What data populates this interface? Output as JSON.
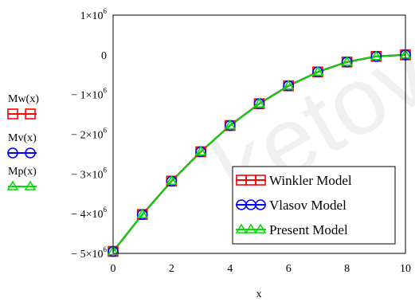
{
  "chart_data": {
    "type": "line",
    "xlabel": "x",
    "ylabel_series": [
      "Mw(x)",
      "Mv(x)",
      "Mp(x)"
    ],
    "xlim": [
      0,
      10
    ],
    "ylim": [
      -5000000,
      1000000
    ],
    "x_ticks": [
      {
        "value": 0,
        "label": "0"
      },
      {
        "value": 2,
        "label": "2"
      },
      {
        "value": 4,
        "label": "4"
      },
      {
        "value": 6,
        "label": "6"
      },
      {
        "value": 8,
        "label": "8"
      },
      {
        "value": 10,
        "label": "10"
      }
    ],
    "y_ticks": [
      {
        "value": 1000000,
        "base": "1×10",
        "exp": "6"
      },
      {
        "value": 0,
        "base": "0",
        "exp": ""
      },
      {
        "value": -1000000,
        "base": "− 1×10",
        "exp": "6"
      },
      {
        "value": -2000000,
        "base": "− 2×10",
        "exp": "6"
      },
      {
        "value": -3000000,
        "base": "− 3×10",
        "exp": "6"
      },
      {
        "value": -4000000,
        "base": "− 4×10",
        "exp": "6"
      },
      {
        "value": -5000000,
        "base": "− 5×10",
        "exp": "6"
      }
    ],
    "x": [
      0,
      1,
      2,
      3,
      4,
      5,
      6,
      7,
      8,
      9,
      10
    ],
    "series": [
      {
        "name": "Winkler Model",
        "color": "#ff0000",
        "marker": "square",
        "values": [
          -4950000,
          -4020000,
          -3180000,
          -2440000,
          -1780000,
          -1230000,
          -780000,
          -430000,
          -180000,
          -40000,
          0
        ]
      },
      {
        "name": "Vlasov Model",
        "color": "#0000ff",
        "marker": "circle",
        "values": [
          -4950000,
          -4020000,
          -3180000,
          -2440000,
          -1780000,
          -1230000,
          -780000,
          -430000,
          -180000,
          -40000,
          0
        ]
      },
      {
        "name": "Present Model",
        "color": "#00dd00",
        "marker": "triangle",
        "values": [
          -4950000,
          -4020000,
          -3180000,
          -2440000,
          -1780000,
          -1230000,
          -780000,
          -430000,
          -180000,
          -40000,
          0
        ]
      }
    ],
    "legend_position": "bottom-right",
    "grid": false
  },
  "watermark": "ketov"
}
